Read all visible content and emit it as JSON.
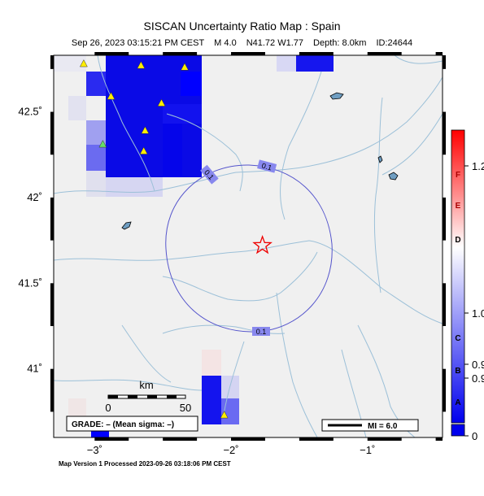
{
  "header": {
    "title": "SISCAN Uncertainty Ratio Map : Spain",
    "date": "Sep 26, 2023 03:15:21 PM CEST",
    "magnitude": "M 4.0",
    "location": "N41.72 W1.77",
    "depth": "Depth: 8.0km",
    "event_id": "ID:24644"
  },
  "map": {
    "lon_range": [
      -3.3,
      -0.45
    ],
    "lat_range": [
      40.6,
      42.83
    ],
    "lat_ticks": [
      {
        "value": 42.5,
        "label": "42.5˚"
      },
      {
        "value": 42.0,
        "label": "42˚"
      },
      {
        "value": 41.5,
        "label": "41.5˚"
      },
      {
        "value": 41.0,
        "label": "41˚"
      }
    ],
    "lon_ticks": [
      {
        "value": -3.0,
        "label": "−3˚"
      },
      {
        "value": -2.0,
        "label": "−2˚"
      },
      {
        "value": -1.0,
        "label": "−1˚"
      }
    ],
    "epicenter": {
      "lon": -1.77,
      "lat": 41.72
    },
    "contour_label": "0.1",
    "stations": [
      {
        "lon": -3.08,
        "lat": 42.78,
        "color": "#ffee00"
      },
      {
        "lon": -2.88,
        "lat": 42.59,
        "color": "#ffee00"
      },
      {
        "lon": -2.66,
        "lat": 42.77,
        "color": "#ffee00"
      },
      {
        "lon": -2.34,
        "lat": 42.76,
        "color": "#ffee00"
      },
      {
        "lon": -2.51,
        "lat": 42.55,
        "color": "#ffee00"
      },
      {
        "lon": -2.63,
        "lat": 42.39,
        "color": "#ffee00"
      },
      {
        "lon": -2.64,
        "lat": 42.27,
        "color": "#ffee00"
      },
      {
        "lon": -2.94,
        "lat": 42.31,
        "color": "#66dd66"
      },
      {
        "lon": -2.05,
        "lat": 40.73,
        "color": "#ffee00"
      }
    ],
    "scale_bar": {
      "unit": "km",
      "left_label": "0",
      "right_label": "50"
    },
    "grade_label": "GRADE: – (Mean sigma: –)",
    "mi_legend_label": "MI = 6.0"
  },
  "colorbar": {
    "letters": [
      "F",
      "E",
      "D",
      "C",
      "B",
      "A"
    ],
    "values": [
      "1.2",
      "1.0",
      "0.9",
      "0.9",
      "0"
    ],
    "colors": {
      "high": "#ff0000",
      "mid": "#ffffff",
      "low": "#0000ee"
    }
  },
  "footer": {
    "text": "Map Version 1 Processed 2023-09-26 03:18:06 PM CEST"
  }
}
